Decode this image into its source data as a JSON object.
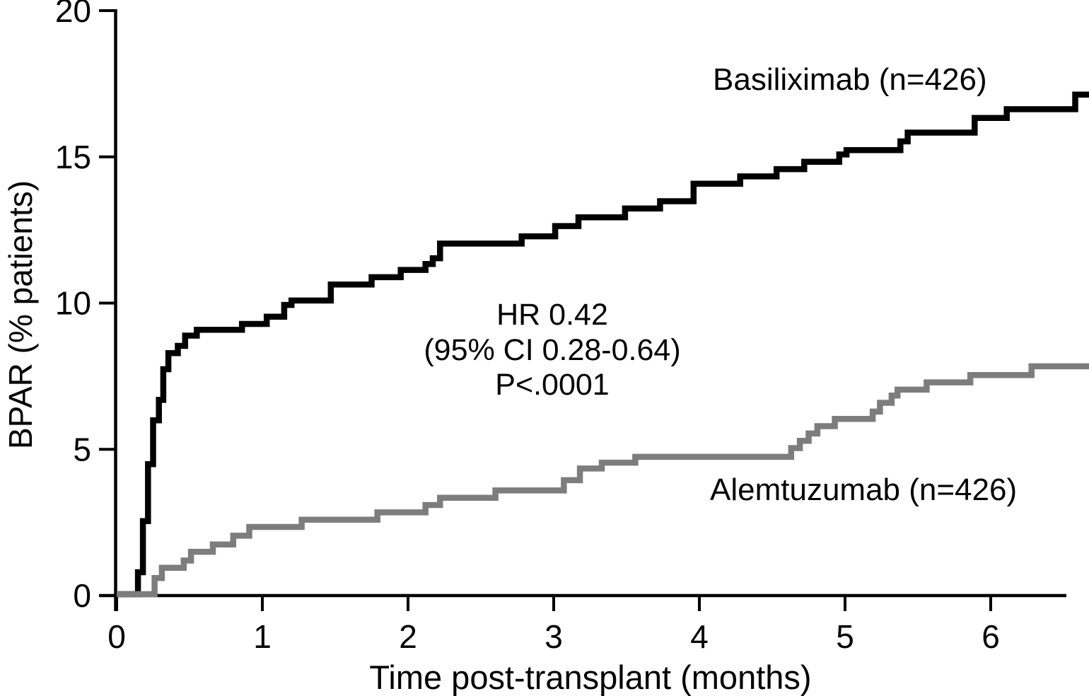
{
  "chart_data": {
    "type": "line",
    "subtype": "step-cumulative-incidence",
    "title": "",
    "xlabel": "Time post-transplant (months)",
    "ylabel": "BPAR (% patients)",
    "xlim": [
      0,
      6.7
    ],
    "ylim": [
      0,
      20
    ],
    "xticks": [
      0,
      1,
      2,
      3,
      4,
      5,
      6
    ],
    "yticks": [
      0,
      5,
      10,
      15,
      20
    ],
    "grid": false,
    "legend_position": "direct-labels-on-plot",
    "annotation": {
      "lines": [
        "HR 0.42",
        "(95% CI 0.28-0.64)",
        "P<.0001"
      ]
    },
    "series": [
      {
        "name": "Basiliximab (n=426)",
        "color": "#000000",
        "steps": [
          [
            0,
            0
          ],
          [
            0.146,
            0.75
          ],
          [
            0.18,
            2.5
          ],
          [
            0.215,
            4.45
          ],
          [
            0.25,
            5.95
          ],
          [
            0.29,
            6.65
          ],
          [
            0.32,
            7.7
          ],
          [
            0.355,
            8.25
          ],
          [
            0.42,
            8.5
          ],
          [
            0.47,
            8.85
          ],
          [
            0.55,
            9.05
          ],
          [
            0.86,
            9.25
          ],
          [
            1.03,
            9.5
          ],
          [
            1.15,
            9.9
          ],
          [
            1.2,
            10.05
          ],
          [
            1.47,
            10.6
          ],
          [
            1.75,
            10.85
          ],
          [
            1.95,
            11.1
          ],
          [
            2.12,
            11.3
          ],
          [
            2.17,
            11.5
          ],
          [
            2.22,
            12.0
          ],
          [
            2.78,
            12.25
          ],
          [
            3.01,
            12.6
          ],
          [
            3.17,
            12.9
          ],
          [
            3.49,
            13.2
          ],
          [
            3.73,
            13.45
          ],
          [
            3.96,
            14.05
          ],
          [
            4.28,
            14.3
          ],
          [
            4.53,
            14.55
          ],
          [
            4.72,
            14.8
          ],
          [
            4.96,
            15.05
          ],
          [
            5.01,
            15.2
          ],
          [
            5.38,
            15.5
          ],
          [
            5.43,
            15.8
          ],
          [
            5.89,
            16.3
          ],
          [
            6.11,
            16.6
          ],
          [
            6.58,
            17.1
          ],
          [
            6.68,
            17.1
          ]
        ]
      },
      {
        "name": "Alemtuzumab (n=426)",
        "color": "#7d7d7d",
        "steps": [
          [
            0,
            0
          ],
          [
            0.26,
            0.55
          ],
          [
            0.31,
            0.9
          ],
          [
            0.46,
            1.15
          ],
          [
            0.51,
            1.45
          ],
          [
            0.66,
            1.7
          ],
          [
            0.8,
            2.0
          ],
          [
            0.91,
            2.3
          ],
          [
            1.27,
            2.55
          ],
          [
            1.79,
            2.8
          ],
          [
            2.12,
            3.05
          ],
          [
            2.22,
            3.3
          ],
          [
            2.6,
            3.55
          ],
          [
            3.07,
            3.9
          ],
          [
            3.18,
            4.3
          ],
          [
            3.33,
            4.5
          ],
          [
            3.56,
            4.7
          ],
          [
            4.63,
            5.0
          ],
          [
            4.69,
            5.25
          ],
          [
            4.75,
            5.5
          ],
          [
            4.81,
            5.75
          ],
          [
            4.93,
            6.0
          ],
          [
            5.19,
            6.25
          ],
          [
            5.24,
            6.55
          ],
          [
            5.32,
            6.8
          ],
          [
            5.36,
            7.0
          ],
          [
            5.56,
            7.25
          ],
          [
            5.86,
            7.5
          ],
          [
            6.28,
            7.8
          ],
          [
            6.68,
            7.8
          ]
        ]
      }
    ]
  }
}
